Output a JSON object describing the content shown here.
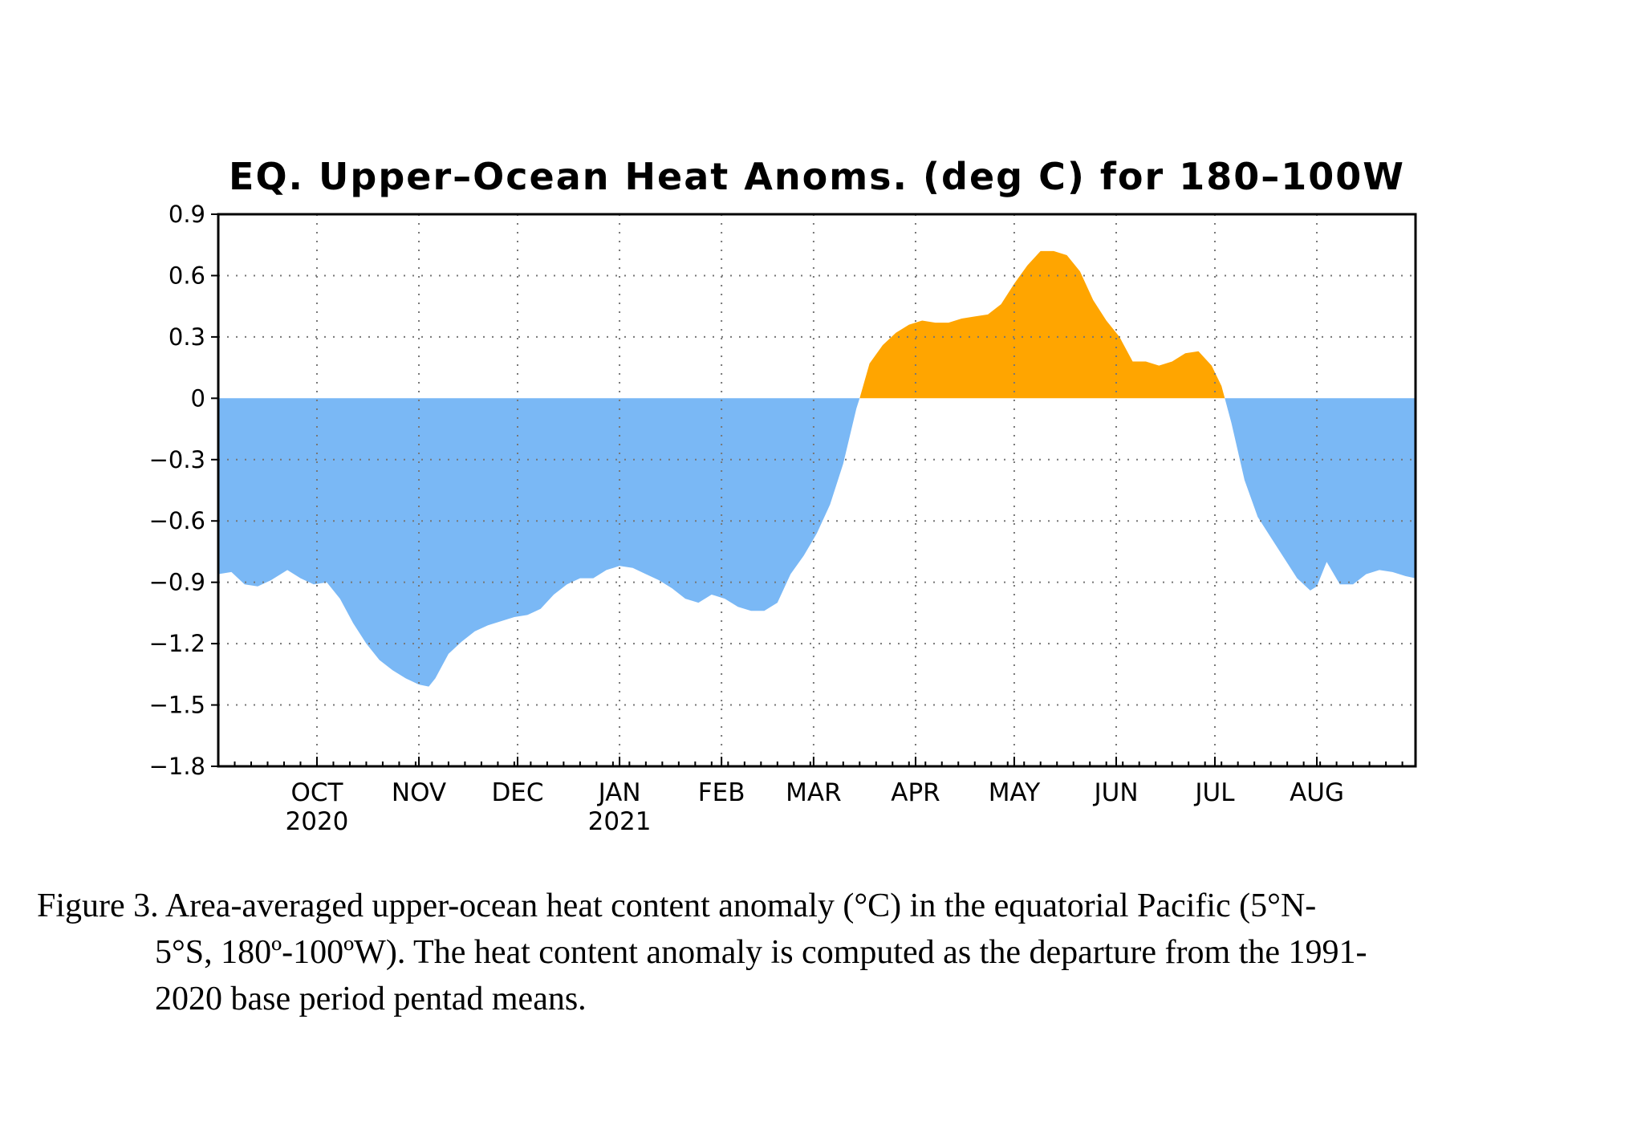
{
  "chart_data": {
    "type": "area",
    "title": "EQ. Upper–Ocean Heat Anoms. (deg C) for 180–100W",
    "xlabel": "",
    "ylabel": "",
    "ylim": [
      -1.8,
      0.9
    ],
    "yticks": [
      0.9,
      0.6,
      0.3,
      0,
      -0.3,
      -0.6,
      -0.9,
      -1.2,
      -1.5,
      -1.8
    ],
    "ytick_labels": [
      "0.9",
      "0.6",
      "0.3",
      "0",
      "−0.3",
      "−0.6",
      "−0.9",
      "−1.2",
      "−1.5",
      "−1.8"
    ],
    "x_start": "2020-09-01",
    "x_end": "2021-08-31",
    "month_ticks": [
      {
        "date": "2020-10-01",
        "label": "OCT",
        "year": "2020"
      },
      {
        "date": "2020-11-01",
        "label": "NOV",
        "year": ""
      },
      {
        "date": "2020-12-01",
        "label": "DEC",
        "year": ""
      },
      {
        "date": "2021-01-01",
        "label": "JAN",
        "year": "2021"
      },
      {
        "date": "2021-02-01",
        "label": "FEB",
        "year": ""
      },
      {
        "date": "2021-03-01",
        "label": "MAR",
        "year": ""
      },
      {
        "date": "2021-04-01",
        "label": "APR",
        "year": ""
      },
      {
        "date": "2021-05-01",
        "label": "MAY",
        "year": ""
      },
      {
        "date": "2021-06-01",
        "label": "JUN",
        "year": ""
      },
      {
        "date": "2021-07-01",
        "label": "JUL",
        "year": ""
      },
      {
        "date": "2021-08-01",
        "label": "AUG",
        "year": ""
      }
    ],
    "grid": true,
    "colors": {
      "positive": "#ffa500",
      "negative": "#7ab8f5"
    },
    "series": [
      {
        "points": [
          [
            "2020-09-01",
            -0.86
          ],
          [
            "2020-09-05",
            -0.85
          ],
          [
            "2020-09-09",
            -0.91
          ],
          [
            "2020-09-13",
            -0.92
          ],
          [
            "2020-09-17",
            -0.89
          ],
          [
            "2020-09-22",
            -0.84
          ],
          [
            "2020-09-26",
            -0.88
          ],
          [
            "2020-09-30",
            -0.91
          ],
          [
            "2020-10-04",
            -0.9
          ],
          [
            "2020-10-08",
            -0.98
          ],
          [
            "2020-10-12",
            -1.1
          ],
          [
            "2020-10-16",
            -1.2
          ],
          [
            "2020-10-20",
            -1.28
          ],
          [
            "2020-10-24",
            -1.33
          ],
          [
            "2020-10-28",
            -1.37
          ],
          [
            "2020-11-01",
            -1.4
          ],
          [
            "2020-11-04",
            -1.41
          ],
          [
            "2020-11-06",
            -1.37
          ],
          [
            "2020-11-10",
            -1.25
          ],
          [
            "2020-11-14",
            -1.19
          ],
          [
            "2020-11-18",
            -1.14
          ],
          [
            "2020-11-22",
            -1.11
          ],
          [
            "2020-11-26",
            -1.09
          ],
          [
            "2020-11-30",
            -1.07
          ],
          [
            "2020-12-04",
            -1.06
          ],
          [
            "2020-12-08",
            -1.03
          ],
          [
            "2020-12-12",
            -0.96
          ],
          [
            "2020-12-16",
            -0.91
          ],
          [
            "2020-12-20",
            -0.88
          ],
          [
            "2020-12-24",
            -0.88
          ],
          [
            "2020-12-28",
            -0.84
          ],
          [
            "2021-01-01",
            -0.82
          ],
          [
            "2021-01-05",
            -0.83
          ],
          [
            "2021-01-09",
            -0.86
          ],
          [
            "2021-01-13",
            -0.89
          ],
          [
            "2021-01-17",
            -0.93
          ],
          [
            "2021-01-21",
            -0.98
          ],
          [
            "2021-01-25",
            -1.0
          ],
          [
            "2021-01-29",
            -0.96
          ],
          [
            "2021-02-02",
            -0.98
          ],
          [
            "2021-02-06",
            -1.02
          ],
          [
            "2021-02-10",
            -1.04
          ],
          [
            "2021-02-14",
            -1.04
          ],
          [
            "2021-02-18",
            -1.0
          ],
          [
            "2021-02-22",
            -0.86
          ],
          [
            "2021-02-26",
            -0.77
          ],
          [
            "2021-03-02",
            -0.66
          ],
          [
            "2021-03-06",
            -0.52
          ],
          [
            "2021-03-10",
            -0.32
          ],
          [
            "2021-03-14",
            -0.05
          ],
          [
            "2021-03-15",
            0.0
          ],
          [
            "2021-03-18",
            0.17
          ],
          [
            "2021-03-22",
            0.26
          ],
          [
            "2021-03-26",
            0.32
          ],
          [
            "2021-03-30",
            0.36
          ],
          [
            "2021-04-03",
            0.38
          ],
          [
            "2021-04-07",
            0.37
          ],
          [
            "2021-04-11",
            0.37
          ],
          [
            "2021-04-15",
            0.39
          ],
          [
            "2021-04-19",
            0.4
          ],
          [
            "2021-04-23",
            0.41
          ],
          [
            "2021-04-27",
            0.46
          ],
          [
            "2021-05-01",
            0.56
          ],
          [
            "2021-05-05",
            0.65
          ],
          [
            "2021-05-09",
            0.72
          ],
          [
            "2021-05-13",
            0.72
          ],
          [
            "2021-05-17",
            0.7
          ],
          [
            "2021-05-21",
            0.62
          ],
          [
            "2021-05-25",
            0.48
          ],
          [
            "2021-05-29",
            0.38
          ],
          [
            "2021-06-02",
            0.3
          ],
          [
            "2021-06-06",
            0.18
          ],
          [
            "2021-06-10",
            0.18
          ],
          [
            "2021-06-14",
            0.16
          ],
          [
            "2021-06-18",
            0.18
          ],
          [
            "2021-06-22",
            0.22
          ],
          [
            "2021-06-26",
            0.23
          ],
          [
            "2021-06-30",
            0.16
          ],
          [
            "2021-07-03",
            0.06
          ],
          [
            "2021-07-04",
            0.0
          ],
          [
            "2021-07-06",
            -0.12
          ],
          [
            "2021-07-10",
            -0.4
          ],
          [
            "2021-07-14",
            -0.58
          ],
          [
            "2021-07-18",
            -0.68
          ],
          [
            "2021-07-22",
            -0.78
          ],
          [
            "2021-07-26",
            -0.88
          ],
          [
            "2021-07-30",
            -0.94
          ],
          [
            "2021-08-01",
            -0.92
          ],
          [
            "2021-08-04",
            -0.8
          ],
          [
            "2021-08-08",
            -0.91
          ],
          [
            "2021-08-12",
            -0.91
          ],
          [
            "2021-08-16",
            -0.86
          ],
          [
            "2021-08-20",
            -0.84
          ],
          [
            "2021-08-24",
            -0.85
          ],
          [
            "2021-08-28",
            -0.87
          ],
          [
            "2021-08-31",
            -0.88
          ]
        ]
      }
    ]
  },
  "caption": {
    "line1": "Figure 3. Area-averaged upper-ocean heat content anomaly (°C) in the equatorial Pacific (5°N-",
    "line2": "5°S, 180º-100ºW). The heat content anomaly is computed as the departure from the 1991-",
    "line3": "2020 base period pentad means."
  }
}
